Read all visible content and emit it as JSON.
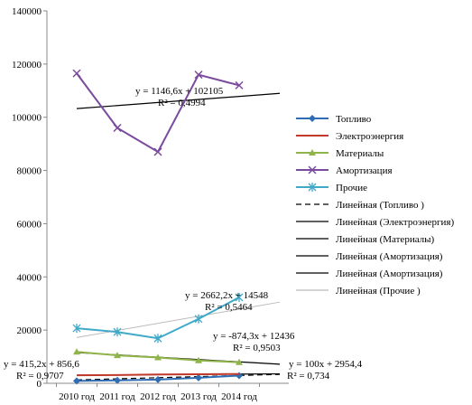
{
  "chart_data": {
    "type": "line",
    "categories": [
      "2010 год",
      "2011 год",
      "2012 год",
      "2013 год",
      "2014 год"
    ],
    "ylim": [
      0,
      140000
    ],
    "yticks": [
      "0",
      "20000",
      "40000",
      "60000",
      "80000",
      "100000",
      "120000",
      "140000"
    ],
    "grid": false,
    "legend_position": "right",
    "series": [
      {
        "name": "Топливо",
        "color": "#2e6db4",
        "marker": "diamond",
        "values": [
          900,
          1100,
          1400,
          2100,
          2900
        ]
      },
      {
        "name": "Электроэнергия",
        "color": "#c0392b",
        "marker": "none",
        "values": [
          3000,
          3100,
          3300,
          3400,
          3500
        ]
      },
      {
        "name": "Материалы",
        "color": "#8fb44a",
        "marker": "triangle",
        "values": [
          11800,
          10500,
          9700,
          8600,
          7900
        ]
      },
      {
        "name": "Амортизация",
        "color": "#7a4a9e",
        "marker": "x",
        "values": [
          116500,
          96000,
          87000,
          116000,
          112000
        ]
      },
      {
        "name": "Прочие",
        "color": "#3fa9c7",
        "marker": "star",
        "values": [
          20700,
          19300,
          16900,
          24200,
          32300
        ]
      }
    ],
    "trendlines": [
      {
        "name": "Линейная (Топливо )",
        "style": "dash",
        "color": "#000000",
        "slope": 415.2,
        "intercept": 856.6,
        "equation": "y = 415,2x + 856,6",
        "r2": "R² = 0,9707"
      },
      {
        "name": "Линейная (Электроэнергия)",
        "style": "solid",
        "color": "#000000",
        "slope": 100,
        "intercept": 2954.4,
        "equation": "y = 100x + 2954,4",
        "r2": "R² = 0,734"
      },
      {
        "name": "Линейная (Материалы)",
        "style": "solid",
        "color": "#000000",
        "slope": -874.3,
        "intercept": 12436,
        "equation": "y = -874,3x + 12436",
        "r2": "R² = 0,9503"
      },
      {
        "name": "Линейная (Амортизация)",
        "style": "solid",
        "color": "#000000",
        "slope": 1146.6,
        "intercept": 102105,
        "equation": "y = 1146,6x + 102105",
        "r2": "R² = 0,4994"
      },
      {
        "name": "Линейная (Амортизация)",
        "style": "solid",
        "color": "#000000",
        "legend_only": true
      },
      {
        "name": "Линейная (Прочие )",
        "style": "solid",
        "color": "#bbbbbb",
        "slope": 2662.2,
        "intercept": 14548,
        "equation": "y = 2662,2x + 14548",
        "r2": "R² = 0,5464"
      }
    ]
  }
}
